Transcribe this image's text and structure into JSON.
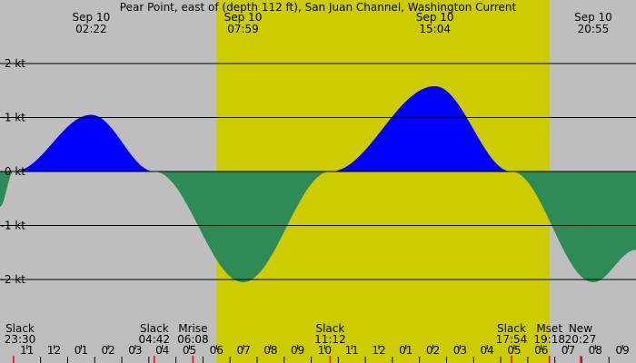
{
  "chart_data": {
    "type": "area",
    "title": "Pear Point, east of (depth 112 ft), San Juan Channel, Washington Current",
    "ylim": [
      -2.5,
      2.5
    ],
    "y_ticks": [
      {
        "value": 2,
        "label": "2 kt"
      },
      {
        "value": 1,
        "label": "1 kt"
      },
      {
        "value": 0,
        "label": "0 kt"
      },
      {
        "value": -1,
        "label": "-1 kt"
      },
      {
        "value": -2,
        "label": "-2 kt"
      }
    ],
    "x_range_hours": [
      -1.0,
      22.5
    ],
    "daylight_hours": [
      7.0,
      19.3
    ],
    "x_ticks": [
      "11",
      "12",
      "01",
      "02",
      "03",
      "04",
      "05",
      "06",
      "07",
      "08",
      "09",
      "10",
      "11",
      "12",
      "01",
      "02",
      "03",
      "04",
      "05",
      "06",
      "07",
      "08",
      "09"
    ],
    "top_labels": [
      {
        "t": 2.37,
        "date": "Sep 10",
        "time": "02:22"
      },
      {
        "t": 7.98,
        "date": "Sep 10",
        "time": "07:59"
      },
      {
        "t": 15.07,
        "date": "Sep 10",
        "time": "15:04"
      },
      {
        "t": 20.92,
        "date": "Sep 10",
        "time": "20:55"
      }
    ],
    "bottom_labels": [
      {
        "t": -0.5,
        "name": "Slack",
        "time": "23:30"
      },
      {
        "t": 4.7,
        "name": "Slack",
        "time": "04:42"
      },
      {
        "t": 6.13,
        "name": "Mrise",
        "time": "06:08"
      },
      {
        "t": 11.2,
        "name": "Slack",
        "time": "11:12"
      },
      {
        "t": 17.9,
        "name": "Slack",
        "time": "17:54"
      },
      {
        "t": 19.3,
        "name": "Mset",
        "time": "19:18"
      },
      {
        "t": 20.45,
        "name": "New",
        "time": "20:27"
      }
    ],
    "series": [
      {
        "values": [
          [
            -1.0,
            -0.65
          ],
          [
            -0.5,
            0.0
          ],
          [
            2.37,
            1.05
          ],
          [
            4.7,
            0.0
          ],
          [
            7.98,
            -2.05
          ],
          [
            11.2,
            0.0
          ],
          [
            15.07,
            1.58
          ],
          [
            17.9,
            0.0
          ],
          [
            20.92,
            -2.05
          ],
          [
            22.5,
            -1.45
          ]
        ]
      }
    ],
    "colors": {
      "night": "#bebebe",
      "day": "#cccc00",
      "flood": "#0000ff",
      "ebb": "#2e8b57",
      "grid": "#000000",
      "moon_mark": "#ff0000"
    },
    "grid": true
  }
}
